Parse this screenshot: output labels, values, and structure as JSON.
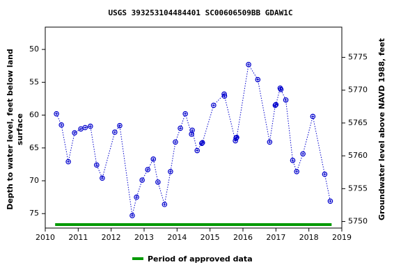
{
  "chart_data": {
    "type": "scatter",
    "title": "USGS 393253104484401 SC00606509BB GDAW1C",
    "ylabel": [
      "Depth to water level, feet below land",
      "surface"
    ],
    "y2label": "Groundwater level above NAVD 1988, feet",
    "x": [
      2010.34,
      2010.49,
      2010.7,
      2010.89,
      2011.08,
      2011.21,
      2011.37,
      2011.56,
      2011.73,
      2012.11,
      2012.26,
      2012.64,
      2012.77,
      2012.94,
      2013.11,
      2013.28,
      2013.42,
      2013.62,
      2013.8,
      2013.95,
      2014.1,
      2014.25,
      2014.44,
      2014.46,
      2014.61,
      2014.75,
      2014.77,
      2015.11,
      2015.43,
      2015.44,
      2015.77,
      2015.79,
      2015.81,
      2016.17,
      2016.45,
      2016.81,
      2016.98,
      2017.0,
      2017.13,
      2017.15,
      2017.3,
      2017.51,
      2017.63,
      2017.82,
      2018.12,
      2018.48,
      2018.65
    ],
    "values": [
      59.8,
      61.5,
      67.1,
      62.7,
      62.1,
      61.9,
      61.7,
      67.6,
      69.6,
      62.6,
      61.6,
      75.3,
      72.5,
      69.9,
      68.3,
      66.7,
      70.2,
      73.6,
      68.6,
      64.1,
      62.0,
      59.8,
      62.9,
      62.3,
      65.4,
      64.3,
      64.2,
      58.5,
      56.8,
      57.1,
      63.9,
      63.5,
      63.4,
      52.3,
      54.6,
      64.1,
      58.5,
      58.4,
      55.9,
      56.1,
      57.7,
      66.9,
      68.6,
      65.9,
      60.2,
      69.0,
      73.1
    ],
    "color": "#0000cc",
    "xlim": [
      2010,
      2019
    ],
    "xticks": [
      2010,
      2011,
      2012,
      2013,
      2014,
      2015,
      2016,
      2017,
      2018,
      2019
    ],
    "ylim": [
      46.6,
      77.2
    ],
    "y_inverted": true,
    "yticks": [
      50,
      55,
      60,
      65,
      70,
      75
    ],
    "y2lim": [
      5749.0,
      5779.6
    ],
    "y2ticks": [
      5750,
      5755,
      5760,
      5765,
      5770,
      5775
    ],
    "approved_period": {
      "name": "Period of approved data",
      "color": "#009900",
      "x": [
        2010.3,
        2018.69
      ]
    }
  }
}
